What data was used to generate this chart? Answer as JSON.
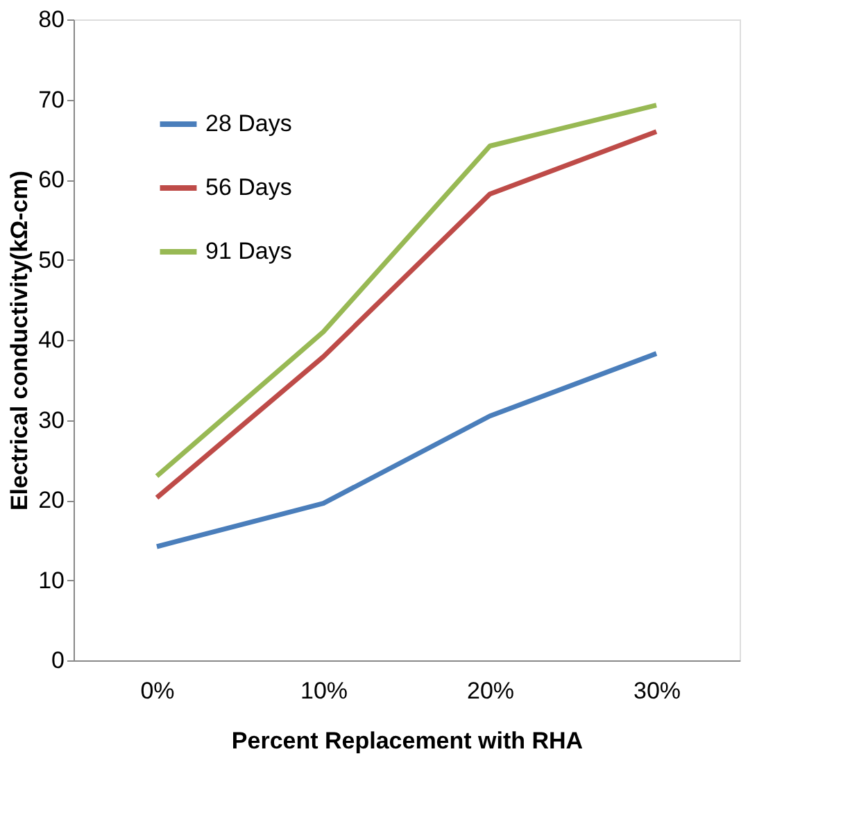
{
  "chart_data": {
    "type": "line",
    "xlabel": "Percent Replacement with RHA",
    "ylabel": "Electrical conductivity(kΩ-cm)",
    "categories": [
      "0%",
      "10%",
      "20%",
      "30%"
    ],
    "series": [
      {
        "name": "28 Days",
        "color": "#4a7ebb",
        "values": [
          14.2,
          19.6,
          30.5,
          38.3
        ]
      },
      {
        "name": "56 Days",
        "color": "#be4b48",
        "values": [
          20.3,
          37.9,
          58.2,
          66.0
        ]
      },
      {
        "name": "91 Days",
        "color": "#98b954",
        "values": [
          23.0,
          41.0,
          64.2,
          69.3
        ]
      }
    ],
    "ylim": [
      0,
      80
    ],
    "yticks": [
      0,
      10,
      20,
      30,
      40,
      50,
      60,
      70,
      80
    ],
    "grid": false,
    "legend": "top left",
    "marker": "none",
    "line_style": "solid"
  }
}
